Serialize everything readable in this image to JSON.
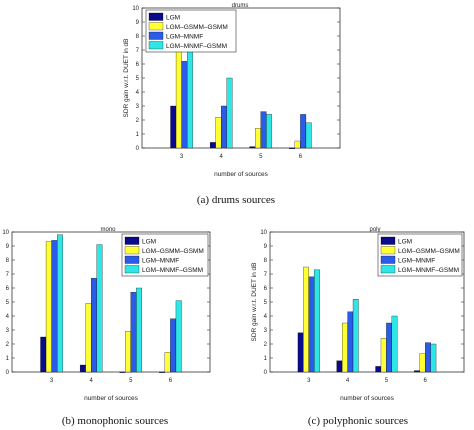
{
  "colors": {
    "LGM": "#0a0a8c",
    "LGM-GSMM-GSMM": "#ffff33",
    "LGM-MNMF": "#2b5ce8",
    "LGM-MNMF-GSMM": "#2ee6e6"
  },
  "chart_data": [
    {
      "type": "bar",
      "title": "drums",
      "xlabel": "number of sources",
      "ylabel": "SDR gain w.r.t. DUET in dB",
      "caption": "(a)  drums sources",
      "categories": [
        "3",
        "4",
        "5",
        "6"
      ],
      "ylim": [
        0,
        10
      ],
      "yticks": [
        "0",
        "1",
        "2",
        "3",
        "4",
        "5",
        "6",
        "7",
        "8",
        "9",
        "10"
      ],
      "legend_position": "top-left",
      "series": [
        {
          "name": "LGM",
          "values": [
            3.0,
            0.4,
            0.1,
            -0.05
          ]
        },
        {
          "name": "LGM–GSMM–GSMM",
          "values": [
            6.9,
            2.2,
            1.4,
            0.5
          ]
        },
        {
          "name": "LGM–MNMF",
          "values": [
            6.2,
            3.0,
            2.6,
            2.4
          ]
        },
        {
          "name": "LGM–MNMF–GSMM",
          "values": [
            7.7,
            5.0,
            2.4,
            1.8
          ]
        }
      ]
    },
    {
      "type": "bar",
      "title": "mono",
      "xlabel": "number of sources",
      "ylabel": "SDR gain w.r.t. DUET in dB",
      "caption": "(b)  monophonic sources",
      "categories": [
        "3",
        "4",
        "5",
        "6"
      ],
      "ylim": [
        0,
        10
      ],
      "yticks": [
        "0",
        "1",
        "2",
        "3",
        "4",
        "5",
        "6",
        "7",
        "8",
        "9",
        "10"
      ],
      "legend_position": "top-right",
      "series": [
        {
          "name": "LGM",
          "values": [
            2.5,
            0.5,
            0.0,
            0.0
          ]
        },
        {
          "name": "LGM–GSMM–GSMM",
          "values": [
            9.3,
            4.9,
            2.9,
            1.4
          ]
        },
        {
          "name": "LGM–MNMF",
          "values": [
            9.4,
            6.7,
            5.7,
            3.8
          ]
        },
        {
          "name": "LGM–MNMF–GSMM",
          "values": [
            9.8,
            9.1,
            6.0,
            5.1
          ]
        }
      ]
    },
    {
      "type": "bar",
      "title": "poly",
      "xlabel": "number of sources",
      "ylabel": "SDR gain w.r.t. DUET in dB",
      "caption": "(c)  polyphonic sources",
      "categories": [
        "3",
        "4",
        "5",
        "6"
      ],
      "ylim": [
        0,
        10
      ],
      "yticks": [
        "0",
        "1",
        "2",
        "3",
        "4",
        "5",
        "6",
        "7",
        "8",
        "9",
        "10"
      ],
      "legend_position": "top-right",
      "series": [
        {
          "name": "LGM",
          "values": [
            2.8,
            0.8,
            0.4,
            0.1
          ]
        },
        {
          "name": "LGM–GSMM–GSMM",
          "values": [
            7.5,
            3.5,
            2.4,
            1.3
          ]
        },
        {
          "name": "LGM–MNMF",
          "values": [
            6.8,
            4.3,
            3.5,
            2.1
          ]
        },
        {
          "name": "LGM–MNMF–GSMM",
          "values": [
            7.3,
            5.2,
            4.0,
            2.0
          ]
        }
      ]
    }
  ]
}
